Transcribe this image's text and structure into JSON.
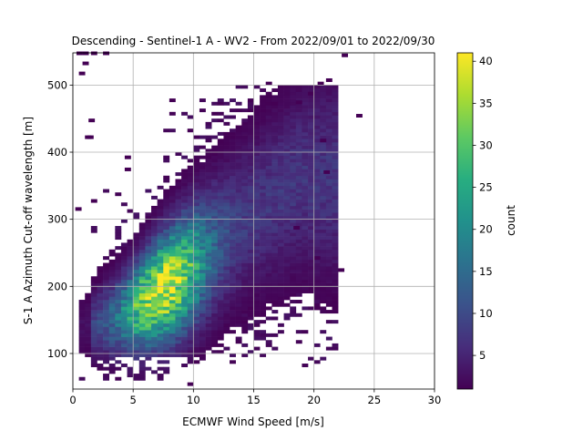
{
  "chart_data": {
    "type": "heatmap",
    "title": "Descending - Sentinel-1 A - WV2 - From 2022/09/01 to 2022/09/30",
    "xlabel": "ECMWF Wind Speed [m/s]",
    "ylabel": "S-1 A Azimuth Cut-off wavelength [m]",
    "xlim": [
      0,
      30
    ],
    "ylim": [
      47,
      548
    ],
    "xticks": [
      "0",
      "5",
      "10",
      "15",
      "20",
      "25",
      "30"
    ],
    "yticks": [
      "100",
      "200",
      "300",
      "400",
      "500"
    ],
    "grid": true,
    "colormap": "viridis",
    "colorbar": {
      "label": "count",
      "range": [
        1,
        41
      ],
      "ticks": [
        "5",
        "10",
        "15",
        "20",
        "25",
        "30",
        "35",
        "40"
      ]
    },
    "bins": {
      "x_width": 0.5,
      "y_width": 5
    },
    "density_model": {
      "description": "2D histogram of wind speed vs cut-off wavelength; dense core along a rising ridge",
      "ridge": [
        {
          "x": 1,
          "y": 140
        },
        {
          "x": 3,
          "y": 150
        },
        {
          "x": 5,
          "y": 165
        },
        {
          "x": 7,
          "y": 190
        },
        {
          "x": 9,
          "y": 215
        },
        {
          "x": 11,
          "y": 245
        },
        {
          "x": 13,
          "y": 280
        },
        {
          "x": 15,
          "y": 310
        },
        {
          "x": 17,
          "y": 335
        },
        {
          "x": 19,
          "y": 360
        }
      ],
      "peak_count": 41,
      "peak_location": {
        "x": 7.5,
        "y": 190
      }
    },
    "outliers": [
      {
        "x": 0.3,
        "y": 545
      },
      {
        "x": 0.8,
        "y": 545
      },
      {
        "x": 1.5,
        "y": 545
      },
      {
        "x": 2.5,
        "y": 545
      },
      {
        "x": 0.8,
        "y": 530
      },
      {
        "x": 0.5,
        "y": 515
      },
      {
        "x": 22.3,
        "y": 542
      },
      {
        "x": 23.5,
        "y": 452
      },
      {
        "x": 21.0,
        "y": 505
      },
      {
        "x": 20.3,
        "y": 500
      },
      {
        "x": 19.5,
        "y": 485
      },
      {
        "x": 18.5,
        "y": 472
      },
      {
        "x": 16.0,
        "y": 500
      },
      {
        "x": 16.5,
        "y": 470
      },
      {
        "x": 8.0,
        "y": 475
      },
      {
        "x": 20.5,
        "y": 415
      },
      {
        "x": 20.8,
        "y": 368
      },
      {
        "x": 22.0,
        "y": 222
      },
      {
        "x": 20.0,
        "y": 240
      },
      {
        "x": 18.3,
        "y": 285
      },
      {
        "x": 1.3,
        "y": 445
      },
      {
        "x": 1.2,
        "y": 420
      },
      {
        "x": 4.3,
        "y": 372
      },
      {
        "x": 4.3,
        "y": 390
      },
      {
        "x": 9.5,
        "y": 52
      },
      {
        "x": 1.0,
        "y": 420
      },
      {
        "x": 0.2,
        "y": 313
      },
      {
        "x": 1.5,
        "y": 325
      },
      {
        "x": 1.8,
        "y": 205
      }
    ]
  }
}
